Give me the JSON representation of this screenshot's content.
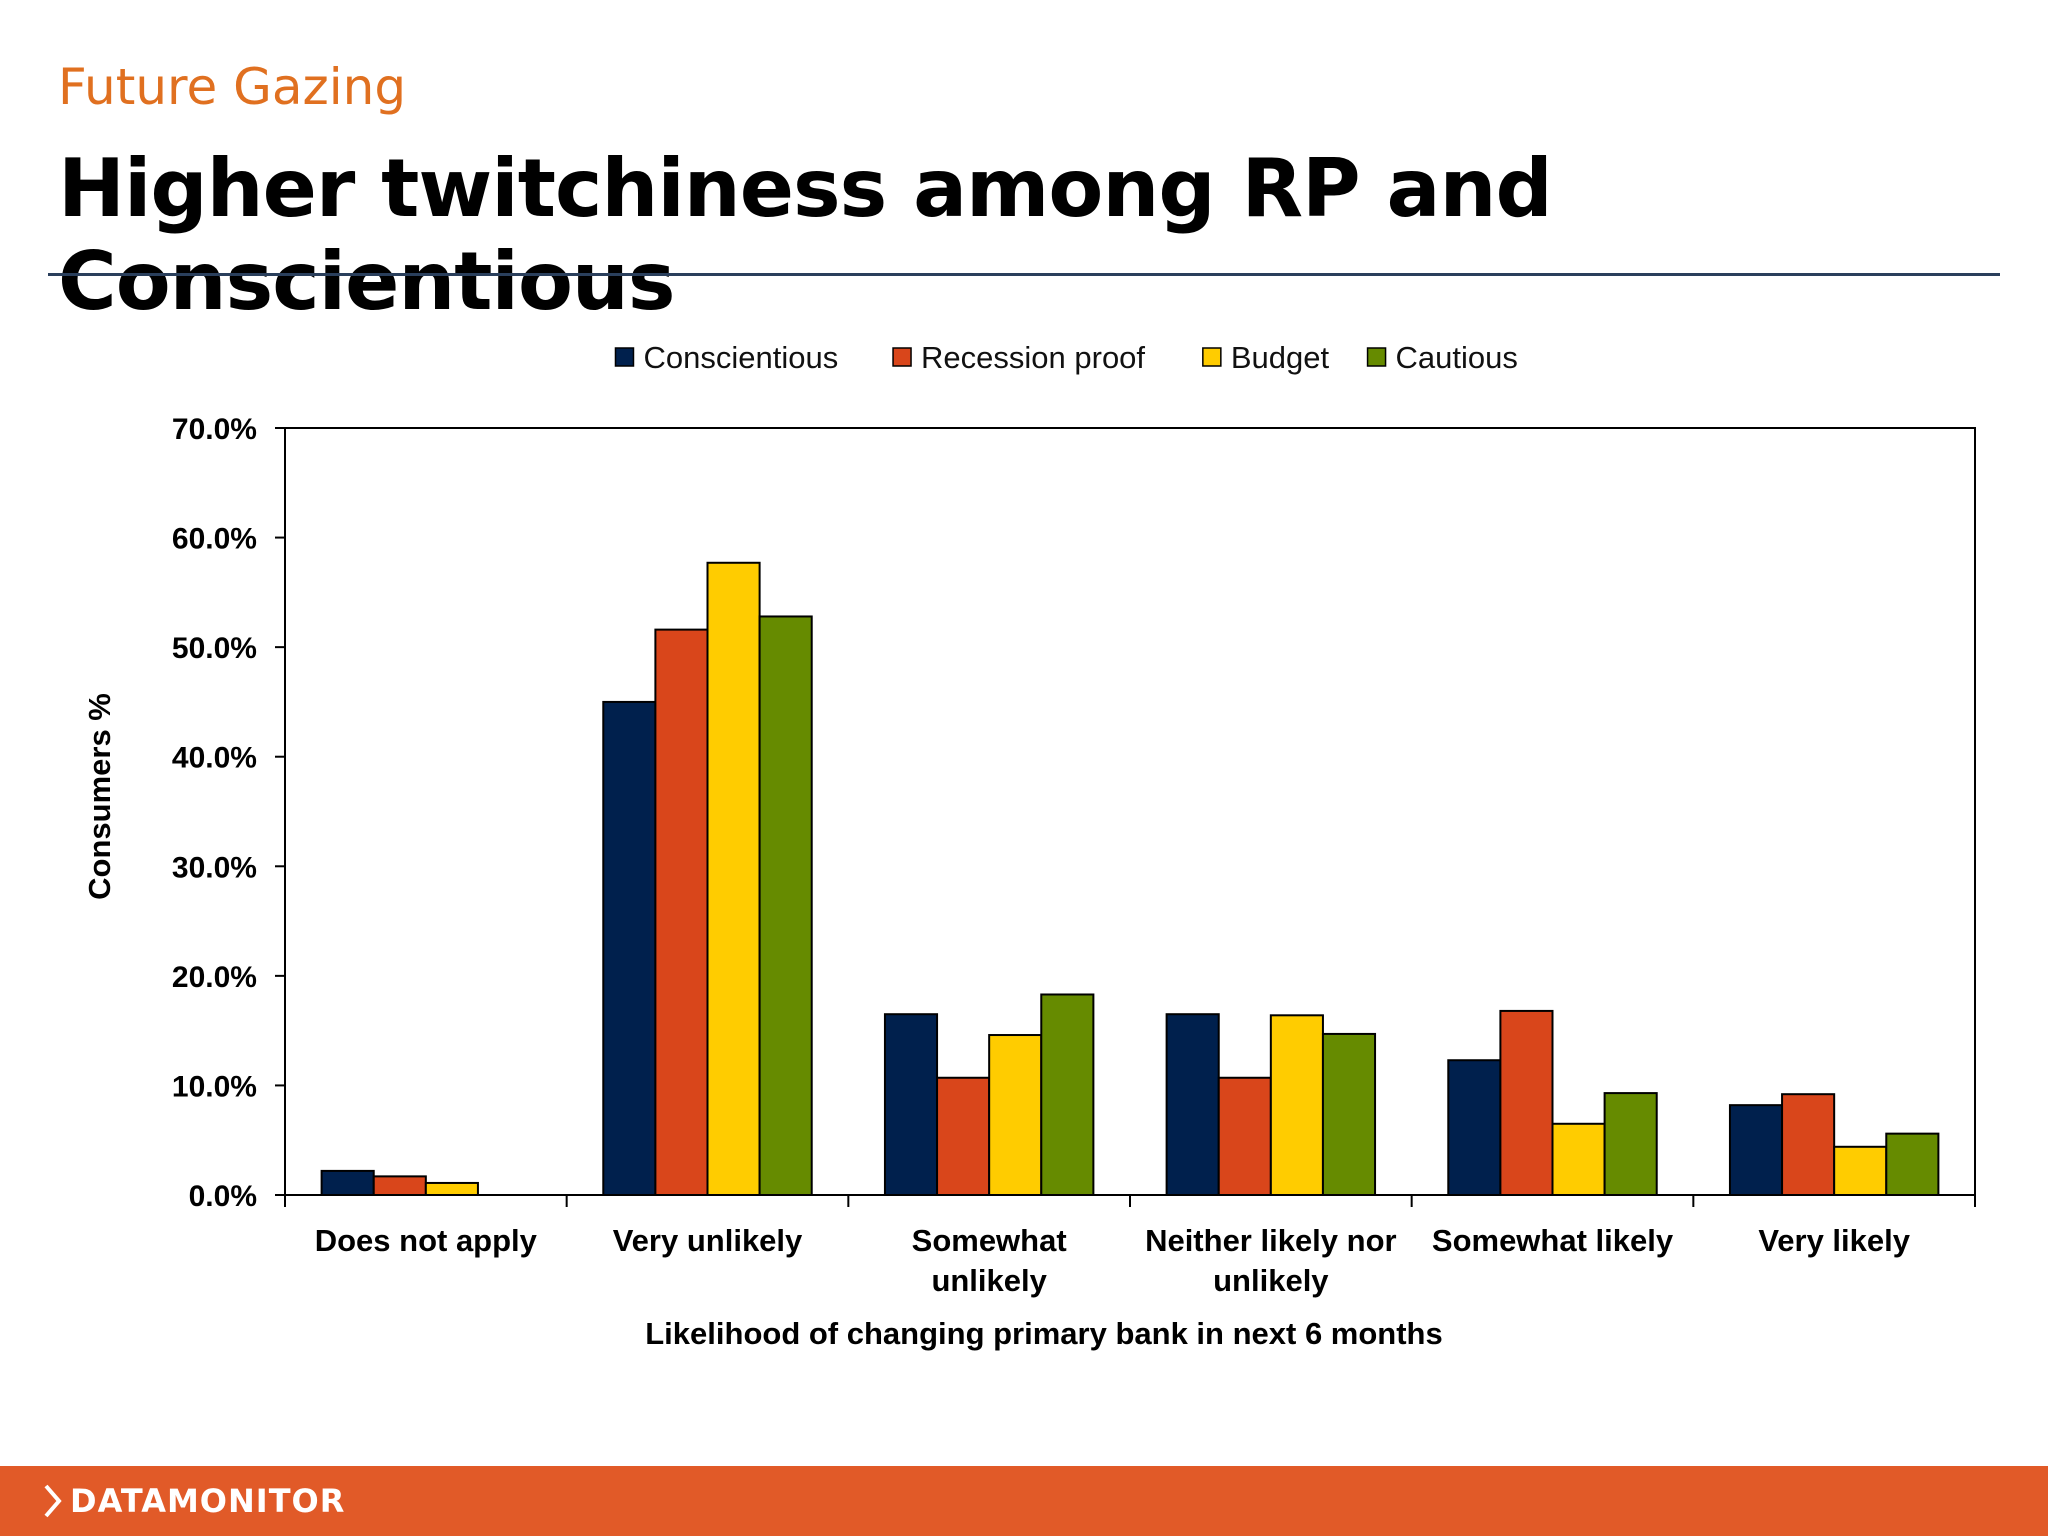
{
  "header": {
    "kicker": "Future Gazing",
    "title": "Higher twitchiness among RP and Conscientious"
  },
  "footer": {
    "brand": "DATAMONITOR",
    "accent": "#e15a28"
  },
  "chart_data": {
    "type": "bar",
    "title": "",
    "xlabel": "Likelihood of changing primary bank in next 6 months",
    "ylabel": "Consumers %",
    "ylim": [
      0,
      70
    ],
    "yticks": [
      0,
      10,
      20,
      30,
      40,
      50,
      60,
      70
    ],
    "ytick_labels": [
      "0.0%",
      "10.0%",
      "20.0%",
      "30.0%",
      "40.0%",
      "50.0%",
      "60.0%",
      "70.0%"
    ],
    "grid": false,
    "legend_position": "top",
    "categories": [
      [
        "Does not apply"
      ],
      [
        "Very unlikely"
      ],
      [
        "Somewhat",
        "unlikely"
      ],
      [
        "Neither likely nor",
        "unlikely"
      ],
      [
        "Somewhat likely"
      ],
      [
        "Very likely"
      ]
    ],
    "series": [
      {
        "name": "Conscientious",
        "color": "#00204d",
        "values": [
          2.2,
          45.0,
          16.5,
          16.5,
          12.3,
          8.2
        ]
      },
      {
        "name": "Recession proof",
        "color": "#d9461b",
        "values": [
          1.7,
          51.6,
          10.7,
          10.7,
          16.8,
          9.2
        ]
      },
      {
        "name": "Budget",
        "color": "#ffcc00",
        "values": [
          1.1,
          57.7,
          14.6,
          16.4,
          6.5,
          4.4
        ]
      },
      {
        "name": "Cautious",
        "color": "#668b00",
        "values": [
          0.0,
          52.8,
          18.3,
          14.7,
          9.3,
          5.6
        ]
      }
    ]
  }
}
